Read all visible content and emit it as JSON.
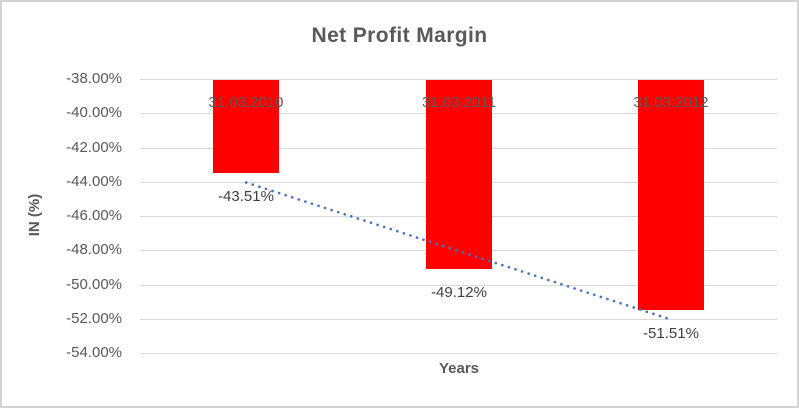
{
  "chart_data": {
    "type": "bar",
    "title": "Net Profit Margin",
    "xlabel": "Years",
    "ylabel": "IN (%)",
    "categories": [
      "31.03.2010",
      "31.03.2011",
      "31.03.2012"
    ],
    "values": [
      -43.51,
      -49.12,
      -51.51
    ],
    "data_labels": [
      "-43.51%",
      "-49.12%",
      "-51.51%"
    ],
    "y_tick_values": [
      -38,
      -40,
      -42,
      -44,
      -46,
      -48,
      -50,
      -52,
      -54
    ],
    "y_tick_labels": [
      "-38.00%",
      "-40.00%",
      "-42.00%",
      "-44.00%",
      "-46.00%",
      "-48.00%",
      "-50.00%",
      "-52.00%",
      "-54.00%"
    ],
    "ylim": [
      -54,
      -38
    ],
    "grid": true,
    "legend": "none",
    "bar_color": "#FF0000",
    "trendline": {
      "type": "linear",
      "line_style": "dotted",
      "color": "#4472C4"
    }
  },
  "colors": {
    "background": "#FFFFFF",
    "border": "#D3D3D3",
    "gridline": "#D9D9D9",
    "title_text": "#595959",
    "axis_text": "#595959",
    "data_label_text": "#404040"
  }
}
